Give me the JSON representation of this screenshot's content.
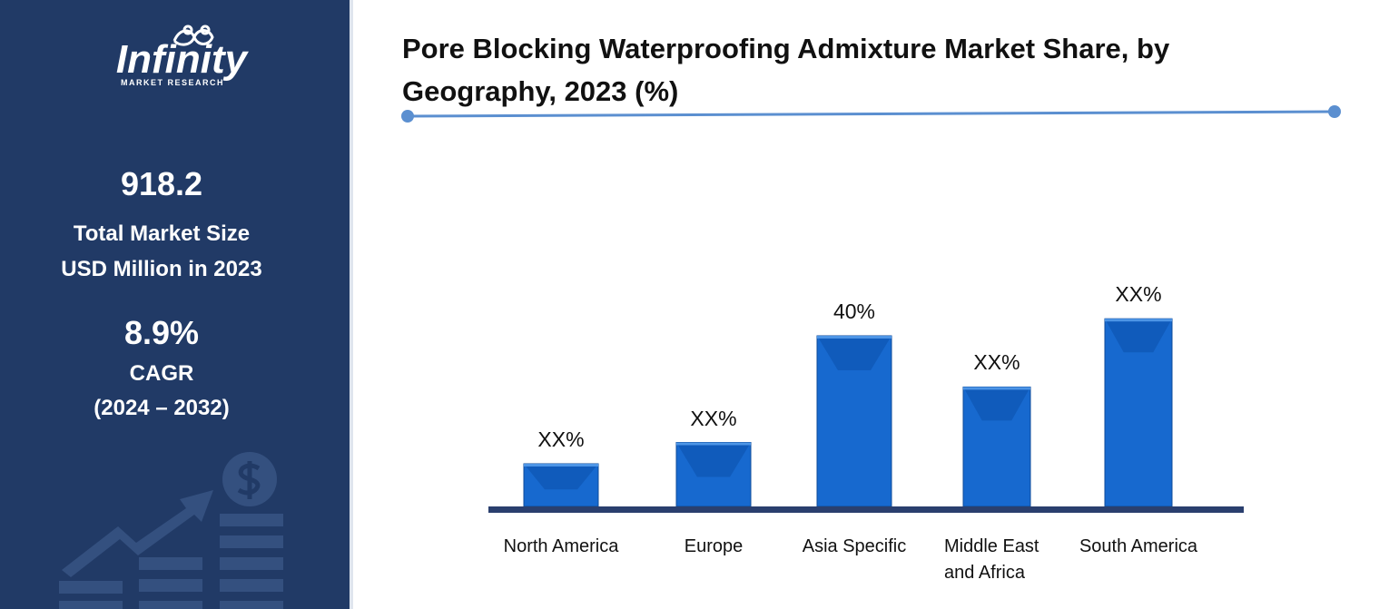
{
  "sidebar": {
    "logo": {
      "name": "Infinity",
      "tagline": "MARKET RESEARCH"
    },
    "market_size": {
      "value": "918.2",
      "label": [
        "Total Market Size",
        "USD Million in 2023"
      ]
    },
    "cagr": {
      "value": "8.9%",
      "label": [
        "CAGR",
        "(2024 – 2032)"
      ]
    }
  },
  "chart_data": {
    "type": "bar",
    "title": "Pore Blocking Waterproofing Admixture Market Share, by Geography, 2023 (%)",
    "categories": [
      "North America",
      "Europe",
      "Asia Specific",
      "Middle East and Africa",
      "South America"
    ],
    "values": [
      10,
      15,
      40,
      28,
      44
    ],
    "value_labels": [
      "XX%",
      "XX%",
      "40%",
      "XX%",
      "XX%"
    ],
    "color": "#1769cf"
  }
}
